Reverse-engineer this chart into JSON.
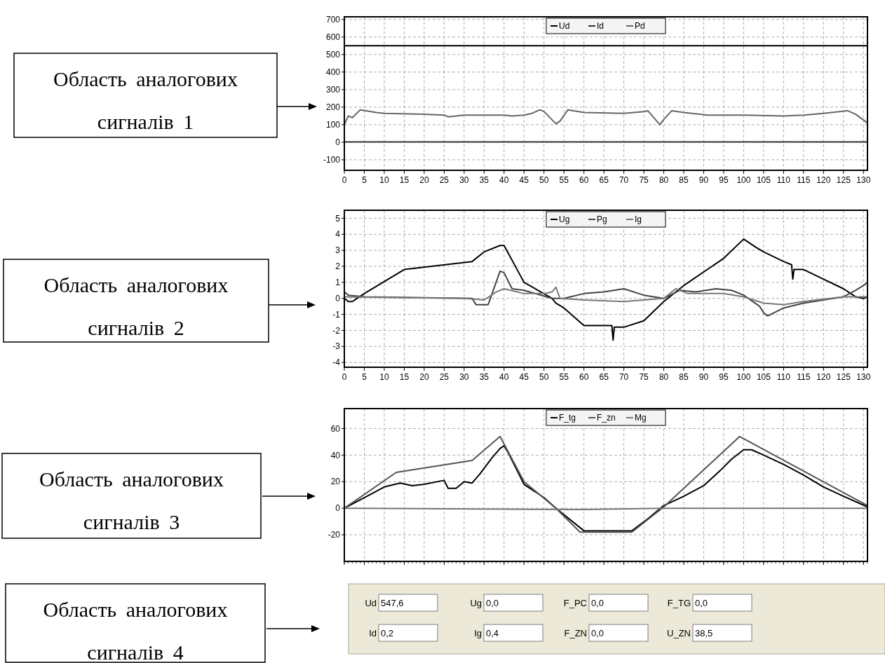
{
  "chart_data": [
    {
      "type": "line",
      "annotations": [
        "Область аналогових сигналів 1"
      ],
      "xlim": [
        0,
        131
      ],
      "xticks": [
        0,
        5,
        10,
        15,
        20,
        25,
        30,
        35,
        40,
        45,
        50,
        55,
        60,
        65,
        70,
        75,
        80,
        85,
        90,
        95,
        100,
        105,
        110,
        115,
        120,
        125,
        130
      ],
      "ylim": [
        -160,
        715
      ],
      "yticks": [
        -100,
        0,
        100,
        200,
        300,
        400,
        500,
        600,
        700
      ],
      "grid": true,
      "legend": "top",
      "series": [
        {
          "name": "Ud",
          "color": "#000000",
          "x": [
            0,
            131
          ],
          "values": [
            550,
            550
          ]
        },
        {
          "name": "Id",
          "color": "#333333",
          "x": [
            0,
            131
          ],
          "values": [
            2,
            2
          ]
        },
        {
          "name": "Pd",
          "color": "#666666",
          "x": [
            0,
            1,
            2,
            4,
            8,
            10,
            20,
            25,
            26,
            30,
            40,
            42,
            45,
            47,
            49,
            50,
            53,
            54,
            56,
            60,
            70,
            75,
            76,
            79,
            80,
            82,
            85,
            91,
            100,
            110,
            115,
            120,
            124,
            126,
            128,
            131
          ],
          "values": [
            100,
            150,
            140,
            185,
            170,
            165,
            160,
            155,
            145,
            155,
            155,
            150,
            155,
            165,
            185,
            175,
            105,
            120,
            185,
            170,
            165,
            175,
            180,
            100,
            130,
            180,
            170,
            155,
            155,
            150,
            155,
            165,
            175,
            180,
            160,
            110
          ]
        }
      ]
    },
    {
      "type": "line",
      "annotations": [
        "Область аналогових сигналів 2"
      ],
      "xlim": [
        0,
        131
      ],
      "xticks": [
        0,
        5,
        10,
        15,
        20,
        25,
        30,
        35,
        40,
        45,
        50,
        55,
        60,
        65,
        70,
        75,
        80,
        85,
        90,
        95,
        100,
        105,
        110,
        115,
        120,
        125,
        130
      ],
      "ylim": [
        -4.3,
        5.5
      ],
      "yticks": [
        -4,
        -3,
        -2,
        -1,
        0,
        1,
        2,
        3,
        4,
        5
      ],
      "grid": true,
      "legend": "top",
      "series": [
        {
          "name": "Ug",
          "color": "#000000",
          "x": [
            0,
            1,
            2,
            5,
            15,
            32,
            35,
            39,
            40,
            45,
            52,
            53,
            55,
            60,
            67,
            67.3,
            67.6,
            70,
            75,
            80,
            85,
            95,
            100,
            103,
            105,
            110,
            112,
            112.3,
            112.6,
            115,
            120,
            125,
            128,
            130,
            131
          ],
          "values": [
            0,
            -0.2,
            -0.2,
            0.3,
            1.8,
            2.3,
            2.9,
            3.3,
            3.3,
            1.0,
            0.0,
            -0.3,
            -0.6,
            -1.7,
            -1.7,
            -2.6,
            -1.8,
            -1.8,
            -1.4,
            -0.2,
            0.8,
            2.5,
            3.7,
            3.2,
            2.9,
            2.3,
            2.1,
            1.2,
            1.8,
            1.8,
            1.2,
            0.6,
            0.1,
            0,
            0.1
          ]
        },
        {
          "name": "Pg",
          "color": "#444444",
          "x": [
            0,
            1,
            5,
            32,
            33,
            36,
            37,
            39,
            40,
            42,
            45,
            52,
            55,
            60,
            65,
            70,
            75,
            80,
            84,
            88,
            93,
            97,
            100,
            104,
            105,
            106,
            110,
            115,
            120,
            125,
            128,
            130,
            131
          ],
          "values": [
            0.4,
            0.2,
            0.1,
            0,
            -0.4,
            -0.4,
            0.3,
            1.7,
            1.6,
            0.6,
            0.5,
            0,
            0,
            0.3,
            0.4,
            0.6,
            0.2,
            0,
            0.5,
            0.4,
            0.6,
            0.5,
            0.2,
            -0.5,
            -0.9,
            -1.1,
            -0.6,
            -0.3,
            -0.1,
            0.1,
            0.5,
            0.8,
            1.0
          ]
        },
        {
          "name": "Ig",
          "color": "#777777",
          "x": [
            0,
            30,
            35,
            38,
            40,
            45,
            50,
            52,
            53,
            54,
            60,
            70,
            80,
            83,
            86,
            95,
            100,
            105,
            110,
            115,
            125,
            131
          ],
          "values": [
            0.1,
            0,
            -0.1,
            0.4,
            0.6,
            0.3,
            0.3,
            0.4,
            0.7,
            0,
            -0.1,
            -0.2,
            0,
            0.6,
            0.3,
            0.3,
            0.1,
            -0.3,
            -0.4,
            -0.2,
            0.1,
            0.1
          ]
        }
      ]
    },
    {
      "type": "line",
      "annotations": [
        "Область аналогових сигналів 3"
      ],
      "xlim": [
        0,
        131
      ],
      "xticks": [
        0,
        5,
        10,
        15,
        20,
        25,
        30,
        35,
        40,
        45,
        50,
        55,
        60,
        65,
        70,
        75,
        80,
        85,
        90,
        95,
        100,
        105,
        110,
        115,
        120,
        125,
        130
      ],
      "ylim": [
        -40,
        75
      ],
      "yticks": [
        -20,
        0,
        20,
        40,
        60
      ],
      "tick_labels": "y",
      "grid": true,
      "legend": "top",
      "series": [
        {
          "name": "F_tg",
          "color": "#000000",
          "x": [
            0,
            5,
            10,
            14,
            17,
            20,
            25,
            26,
            28,
            30,
            32,
            34,
            37,
            39,
            40,
            41,
            45,
            50,
            53,
            60,
            72,
            76,
            80,
            85,
            90,
            94,
            97,
            100,
            102,
            105,
            110,
            115,
            120,
            125,
            131
          ],
          "values": [
            0,
            8,
            16,
            19,
            17,
            18,
            21,
            15,
            15,
            20,
            19,
            26,
            38,
            45,
            47,
            42,
            18,
            8,
            0,
            -17,
            -17,
            -8,
            2,
            9,
            17,
            28,
            37,
            44,
            44,
            40,
            33,
            25,
            16,
            9,
            1
          ]
        },
        {
          "name": "F_zn",
          "color": "#555555",
          "x": [
            0,
            13,
            32,
            39,
            45,
            53,
            59,
            72,
            80,
            99,
            131
          ],
          "values": [
            0,
            27,
            36,
            54,
            20,
            0,
            -18,
            -18,
            1,
            54,
            2
          ]
        },
        {
          "name": "Mg",
          "color": "#777777",
          "x": [
            0,
            60,
            80,
            131
          ],
          "values": [
            0,
            -1,
            0,
            0
          ]
        }
      ]
    },
    {
      "type": "other",
      "annotations": [
        "Область аналогових сигналів 4",
        "Ud",
        "547,6",
        "Ug",
        "0,0",
        "F_PC",
        "0,0",
        "F_TG",
        "0,0",
        "Id",
        "0,2",
        "Ig",
        "0,4",
        "F_ZN",
        "0,0",
        "U_ZN",
        "38,5"
      ]
    }
  ]
}
